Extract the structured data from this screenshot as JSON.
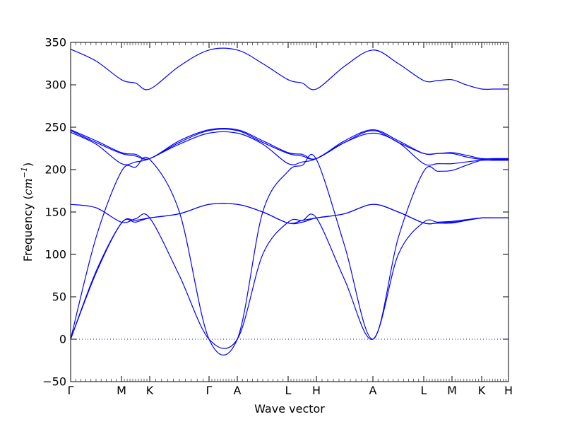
{
  "chart_data": {
    "type": "line",
    "title": "",
    "xlabel": "Wave vector",
    "ylabel": {
      "prefix": "Frequency (",
      "unit_base": "cm",
      "unit_exp": "−1",
      "suffix": ")"
    },
    "ylim": [
      -50,
      350
    ],
    "yticks": [
      -50,
      0,
      50,
      100,
      150,
      200,
      250,
      300,
      350
    ],
    "xlim": [
      0,
      15.5
    ],
    "high_symmetry_points": [
      {
        "label": "Γ",
        "x": 0
      },
      {
        "label": "M",
        "x": 1.8
      },
      {
        "label": "K",
        "x": 2.8
      },
      {
        "label": "Γ",
        "x": 4.9
      },
      {
        "label": "A",
        "x": 5.9
      },
      {
        "label": "L",
        "x": 7.7
      },
      {
        "label": "H",
        "x": 8.7
      },
      {
        "label": "A",
        "x": 10.7
      },
      {
        "label": "L",
        "x": 12.5
      },
      {
        "label": "M",
        "x": 13.5
      },
      {
        "label": "K",
        "x": 14.55
      },
      {
        "label": "H",
        "x": 15.5
      }
    ],
    "zero_line": {
      "y": 0,
      "style": "dotted"
    },
    "line_color": "#0000ff",
    "grid": false,
    "series": [
      {
        "x": [
          0,
          0.9,
          1.8,
          2.3,
          2.8,
          3.85,
          4.9,
          5.9,
          6.8,
          7.7,
          8.2,
          8.7,
          9.7,
          10.7,
          11.6,
          12.5,
          13.0,
          13.5,
          14.0,
          14.55,
          15.0,
          15.5
        ],
        "y": [
          0,
          80,
          137,
          140,
          143,
          148,
          159,
          159,
          150,
          137,
          140,
          143,
          148,
          159,
          150,
          137,
          137,
          137,
          140,
          143,
          143,
          143
        ]
      },
      {
        "x": [
          0,
          0.9,
          1.8,
          2.3,
          2.8,
          3.85,
          4.9,
          5.9,
          6.8,
          7.7,
          8.2,
          8.7,
          9.7,
          10.7,
          11.6,
          12.5,
          13.0,
          13.5,
          14.0,
          14.55,
          15.0,
          15.5
        ],
        "y": [
          0,
          78,
          137,
          138,
          143,
          148,
          159,
          159,
          150,
          137,
          138,
          143,
          148,
          159,
          150,
          137,
          137,
          138,
          140,
          143,
          143,
          143
        ]
      },
      {
        "x": [
          0,
          0.9,
          1.8,
          2.3,
          2.8,
          3.85,
          4.9,
          5.9,
          6.8,
          7.7,
          8.2,
          8.7,
          9.7,
          10.7,
          11.6,
          12.5,
          13.0,
          13.5,
          14.0,
          14.55,
          15.0,
          15.5
        ],
        "y": [
          159,
          155,
          138,
          142,
          143,
          75,
          0,
          0,
          100,
          138,
          140,
          143,
          70,
          0,
          100,
          138,
          138,
          139,
          141,
          143,
          143,
          143
        ]
      },
      {
        "x": [
          0,
          0.9,
          1.8,
          2.3,
          2.8,
          3.85,
          4.9,
          5.9,
          6.8,
          7.7,
          8.2,
          8.7,
          9.7,
          10.7,
          11.6,
          12.5,
          13.0,
          13.5,
          14.0,
          14.55,
          15.0,
          15.5
        ],
        "y": [
          0,
          120,
          198,
          203,
          212,
          150,
          0,
          0,
          150,
          198,
          205,
          212,
          110,
          0,
          120,
          198,
          198,
          199,
          205,
          211,
          211,
          211
        ]
      },
      {
        "x": [
          0,
          0.9,
          1.8,
          2.3,
          2.8,
          3.85,
          4.9,
          5.9,
          6.8,
          7.7,
          8.2,
          8.7,
          9.7,
          10.7,
          11.6,
          12.5,
          13.0,
          13.5,
          14.0,
          14.55,
          15.0,
          15.5
        ],
        "y": [
          244,
          230,
          207,
          209,
          213,
          230,
          243,
          243,
          230,
          207,
          209,
          213,
          232,
          243,
          232,
          207,
          207,
          207,
          209,
          211,
          211,
          211
        ]
      },
      {
        "x": [
          0,
          0.9,
          1.8,
          2.3,
          2.8,
          3.85,
          4.9,
          5.9,
          6.8,
          7.7,
          8.2,
          8.7,
          9.7,
          10.7,
          11.6,
          12.5,
          13.0,
          13.5,
          14.0,
          14.55,
          15.0,
          15.5
        ],
        "y": [
          246,
          232,
          219,
          216,
          213,
          232,
          246,
          246,
          232,
          219,
          216,
          213,
          232,
          246,
          232,
          219,
          219,
          219,
          215,
          212,
          212,
          212
        ]
      },
      {
        "x": [
          0,
          0.9,
          1.8,
          2.3,
          2.8,
          3.85,
          4.9,
          5.9,
          6.8,
          7.7,
          8.2,
          8.7,
          9.7,
          10.7,
          11.6,
          12.5,
          13.0,
          13.5,
          14.0,
          14.55,
          15.0,
          15.5
        ],
        "y": [
          247,
          234,
          220,
          218,
          213,
          234,
          247,
          247,
          234,
          220,
          218,
          213,
          234,
          247,
          234,
          219,
          219,
          220,
          217,
          213,
          213,
          213
        ]
      },
      {
        "x": [
          0,
          0.9,
          1.8,
          2.3,
          2.8,
          3.85,
          4.9,
          5.9,
          6.8,
          7.7,
          8.2,
          8.7,
          9.7,
          10.7,
          11.6,
          12.5,
          13.0,
          13.5,
          14.0,
          14.55,
          15.0,
          15.5
        ],
        "y": [
          342,
          328,
          306,
          302,
          295,
          322,
          341,
          341,
          325,
          306,
          302,
          295,
          322,
          341,
          325,
          305,
          305,
          306,
          300,
          295,
          295,
          295
        ]
      }
    ]
  }
}
